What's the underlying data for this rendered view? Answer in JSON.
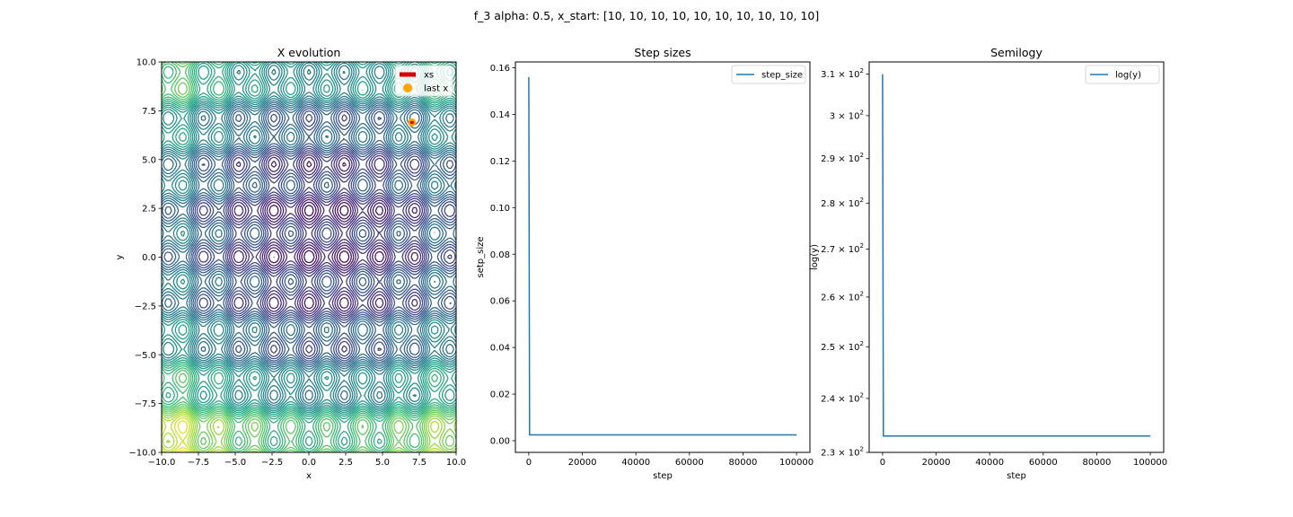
{
  "figure": {
    "suptitle": "f_3 alpha: 0.5, x_start: [10, 10, 10, 10, 10, 10, 10, 10, 10, 10]"
  },
  "chart_data": [
    {
      "type": "contour",
      "title": "X evolution",
      "xlabel": "x",
      "ylabel": "y",
      "xlim": [
        -10,
        10
      ],
      "ylim": [
        -10,
        10
      ],
      "xticks": [
        "−10.0",
        "−7.5",
        "−5.0",
        "−2.5",
        "0.0",
        "2.5",
        "5.0",
        "7.5",
        "10.0"
      ],
      "yticks": [
        "−10.0",
        "−7.5",
        "−5.0",
        "−2.5",
        "0.0",
        "2.5",
        "5.0",
        "7.5",
        "10.0"
      ],
      "colormap": "viridis",
      "legend": {
        "position": "upper right",
        "entries": [
          {
            "label": "xs",
            "color": "#dd0000",
            "marker": "line"
          },
          {
            "label": "last x",
            "color": "#ffa500",
            "marker": "circle"
          }
        ]
      },
      "points": [
        {
          "name": "xs",
          "x": 7.0,
          "y": 6.9,
          "color": "#dd0000"
        },
        {
          "name": "last x",
          "x": 7.0,
          "y": 6.9,
          "color": "#ffa500"
        }
      ]
    },
    {
      "type": "line",
      "title": "Step sizes",
      "xlabel": "step",
      "ylabel": "setp_size",
      "xlim": [
        -5000,
        105000
      ],
      "ylim": [
        -0.005,
        0.1625
      ],
      "xticks": [
        0,
        20000,
        40000,
        60000,
        80000,
        100000
      ],
      "yticks": [
        0.0,
        0.02,
        0.04,
        0.06,
        0.08,
        0.1,
        0.12,
        0.14,
        0.16
      ],
      "ytick_labels": [
        "0.00",
        "0.02",
        "0.04",
        "0.06",
        "0.08",
        "0.10",
        "0.12",
        "0.14",
        "0.16"
      ],
      "legend": {
        "position": "upper right",
        "entries": [
          {
            "label": "step_size",
            "color": "#1f77b4"
          }
        ]
      },
      "series": [
        {
          "name": "step_size",
          "color": "#1f77b4",
          "x": [
            0,
            300,
            100000
          ],
          "y": [
            0.156,
            0.0025,
            0.0025
          ]
        }
      ]
    },
    {
      "type": "line",
      "title": "Semilogy",
      "xlabel": "step",
      "ylabel": "log(y)",
      "yscale": "log",
      "xlim": [
        -5000,
        105000
      ],
      "ylim": [
        230,
        313
      ],
      "xticks": [
        0,
        20000,
        40000,
        60000,
        80000,
        100000
      ],
      "yticks": [
        230,
        240,
        250,
        260,
        270,
        280,
        290,
        300,
        310
      ],
      "ytick_labels": [
        [
          "2.3",
          "2"
        ],
        [
          "2.4",
          "2"
        ],
        [
          "2.5",
          "2"
        ],
        [
          "2.6",
          "2"
        ],
        [
          "2.7",
          "2"
        ],
        [
          "2.8",
          "2"
        ],
        [
          "2.9",
          "2"
        ],
        [
          "3",
          "2"
        ],
        [
          "3.1",
          "2"
        ]
      ],
      "legend": {
        "position": "upper right",
        "entries": [
          {
            "label": "log(y)",
            "color": "#1f77b4"
          }
        ]
      },
      "series": [
        {
          "name": "log(y)",
          "color": "#1f77b4",
          "x": [
            0,
            300,
            100000
          ],
          "y": [
            310,
            233,
            233
          ]
        }
      ]
    }
  ]
}
